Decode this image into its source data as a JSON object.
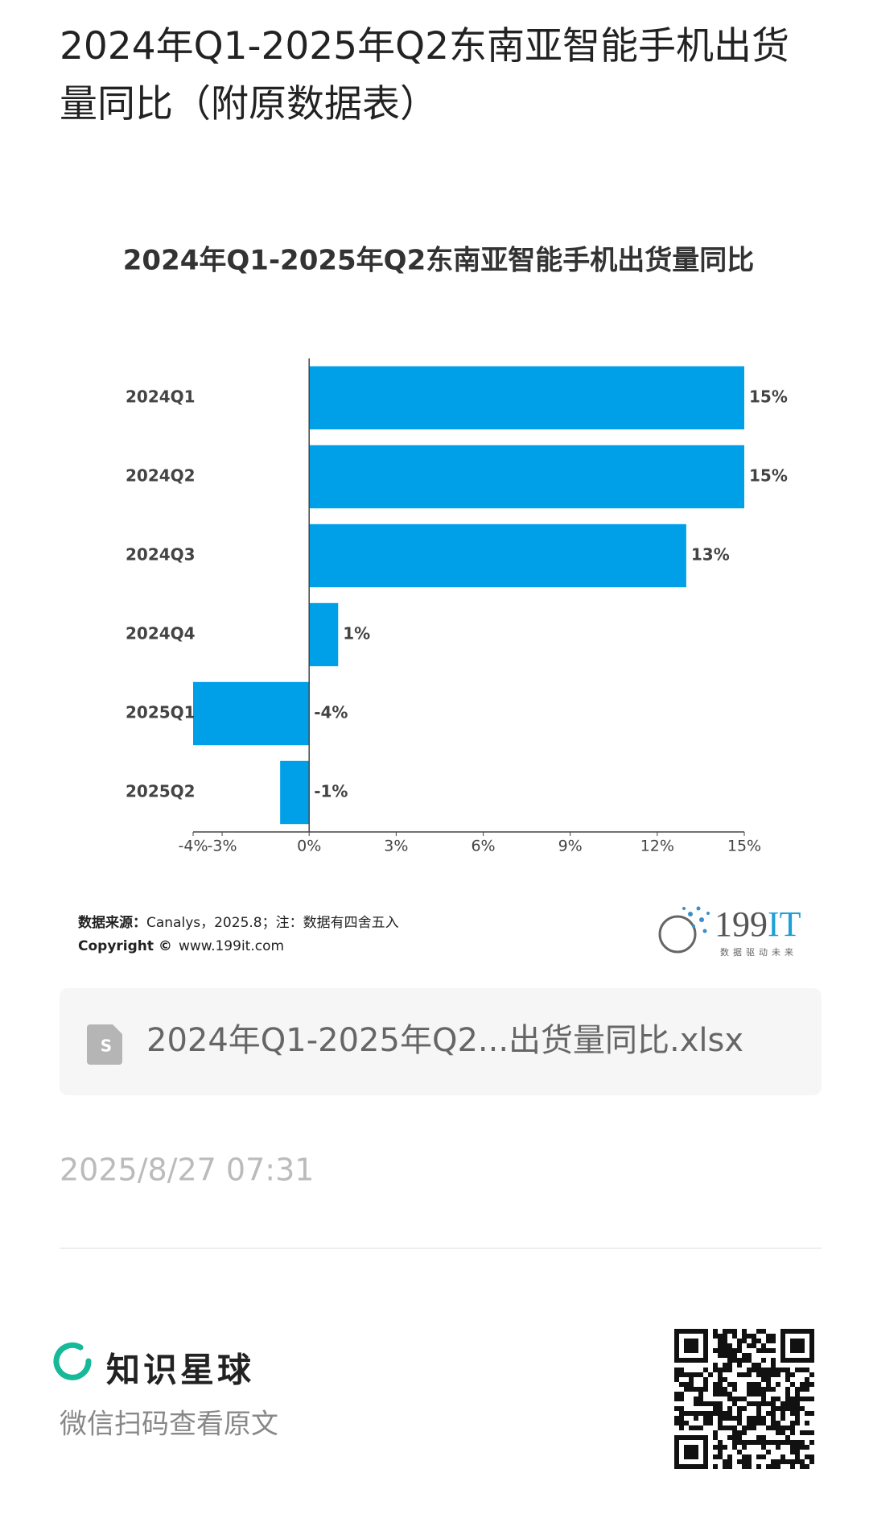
{
  "header": {
    "title": "2024年Q1-2025年Q2东南亚智能手机出货量同比（附原数据表）"
  },
  "chart_data": {
    "type": "bar",
    "orientation": "horizontal",
    "title": "2024年Q1-2025年Q2东南亚智能手机出货量同比",
    "categories": [
      "2024Q1",
      "2024Q2",
      "2024Q3",
      "2024Q4",
      "2025Q1",
      "2025Q2"
    ],
    "values": [
      15,
      15,
      13,
      1,
      -4,
      -1
    ],
    "value_labels": [
      "15%",
      "15%",
      "13%",
      "1%",
      "-4%",
      "-1%"
    ],
    "color": "#00a0e9",
    "xlim": [
      -4,
      15
    ],
    "xticks": [
      {
        "value": -4,
        "label": "-4%"
      },
      {
        "value": -3,
        "label": "-3%"
      },
      {
        "value": 0,
        "label": "0%"
      },
      {
        "value": 3,
        "label": "3%"
      },
      {
        "value": 6,
        "label": "6%"
      },
      {
        "value": 9,
        "label": "9%"
      },
      {
        "value": 12,
        "label": "12%"
      },
      {
        "value": 15,
        "label": "15%"
      }
    ],
    "grid": false
  },
  "source": {
    "label": "数据来源：",
    "text": "Canalys，2025.8；注：数据有四舍五入"
  },
  "copyright": {
    "label": "Copyright ©",
    "text": "www.199it.com"
  },
  "logo": {
    "digits": "199",
    "letters": "IT",
    "slogan": "数据驱动未来"
  },
  "attachment": {
    "filename": "2024年Q1-2025年Q2...出货量同比.xlsx"
  },
  "timestamp": "2025/8/27 07:31",
  "footer": {
    "brand": "知识星球",
    "hint": "微信扫码查看原文"
  }
}
